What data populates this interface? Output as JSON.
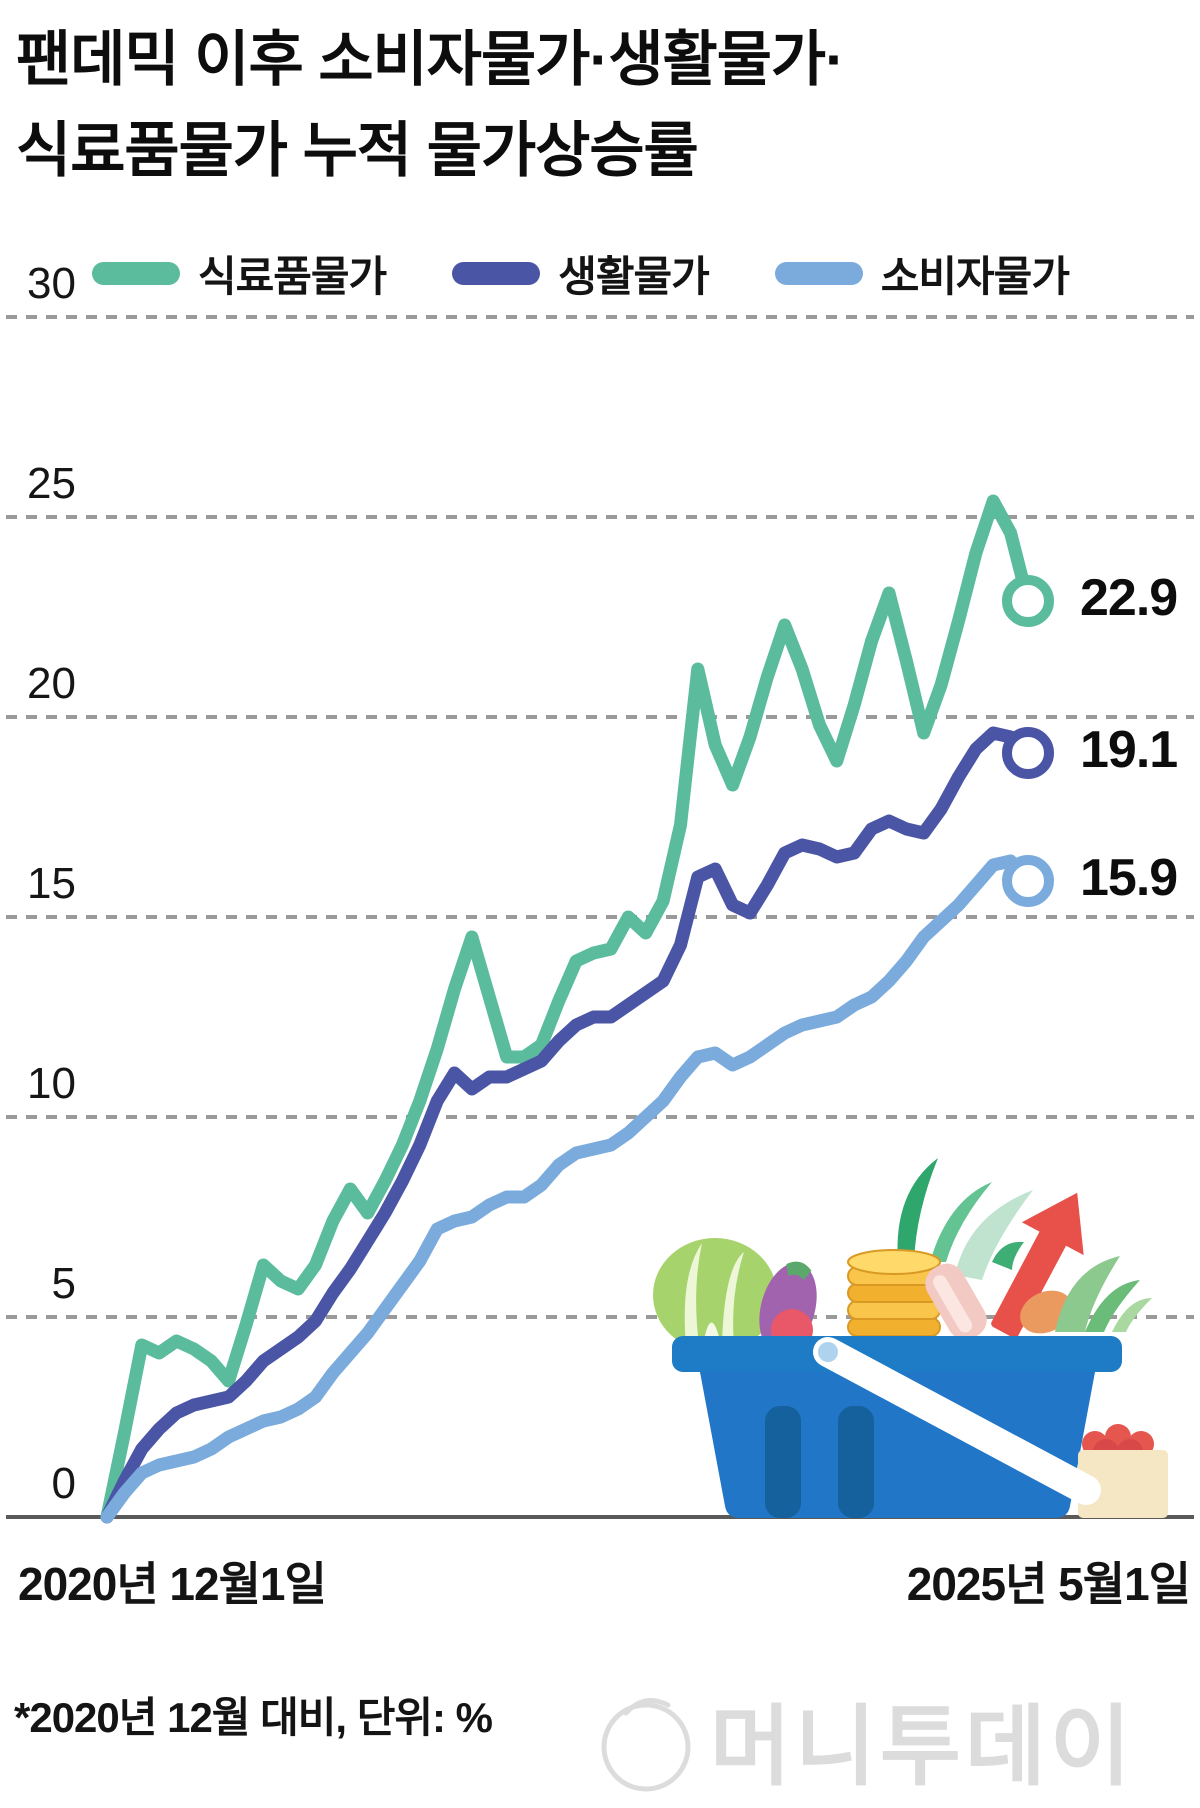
{
  "title": {
    "line1": "팬데믹 이후 소비자물가·생활물가·",
    "line2": "식료품물가 누적 물가상승률"
  },
  "legend": {
    "items": [
      {
        "label": "식료품물가",
        "color": "#5abc9c"
      },
      {
        "label": "생활물가",
        "color": "#4a55a5"
      },
      {
        "label": "소비자물가",
        "color": "#7aabdc"
      }
    ]
  },
  "chart_data": {
    "type": "line",
    "title": "팬데믹 이후 소비자물가·생활물가·식료품물가 누적 물가상승률",
    "unit": "%",
    "note": "2020년 12월 대비 누적 상승률",
    "x_start_label": "2020년 12월1일",
    "x_end_label": "2025년 5월1일",
    "x_range_months": 53,
    "ylim": [
      0,
      30
    ],
    "yticks": [
      30,
      25,
      20,
      15,
      10,
      5,
      0
    ],
    "grid": "horizontal dotted, solid baseline at 0",
    "legend_position": "top",
    "series": [
      {
        "name": "식료품물가",
        "color": "#5abc9c",
        "end_label": "22.9",
        "end_value": 22.9,
        "values": [
          0,
          2.1,
          4.3,
          4.1,
          4.4,
          4.2,
          3.9,
          3.4,
          4.8,
          6.3,
          5.9,
          5.7,
          6.3,
          7.4,
          8.2,
          7.6,
          8.4,
          9.3,
          10.4,
          11.7,
          13.2,
          14.5,
          13.0,
          11.5,
          11.5,
          11.8,
          12.9,
          13.9,
          14.1,
          14.2,
          15.0,
          14.6,
          15.4,
          17.3,
          21.2,
          19.3,
          18.3,
          19.5,
          21.0,
          22.3,
          21.2,
          19.8,
          18.9,
          20.3,
          21.9,
          23.1,
          21.4,
          19.6,
          20.8,
          22.4,
          24.1,
          25.4,
          24.6,
          22.9
        ]
      },
      {
        "name": "생활물가",
        "color": "#4a55a5",
        "end_label": "19.1",
        "end_value": 19.1,
        "values": [
          0,
          0.9,
          1.7,
          2.2,
          2.6,
          2.8,
          2.9,
          3.0,
          3.4,
          3.9,
          4.2,
          4.5,
          4.9,
          5.6,
          6.2,
          6.9,
          7.6,
          8.4,
          9.3,
          10.4,
          11.1,
          10.7,
          11.0,
          11.0,
          11.2,
          11.4,
          11.9,
          12.3,
          12.5,
          12.5,
          12.8,
          13.1,
          13.4,
          14.3,
          16.0,
          16.2,
          15.3,
          15.1,
          15.8,
          16.6,
          16.8,
          16.7,
          16.5,
          16.6,
          17.2,
          17.4,
          17.2,
          17.1,
          17.7,
          18.5,
          19.2,
          19.6,
          19.5,
          19.1
        ]
      },
      {
        "name": "소비자물가",
        "color": "#7aabdc",
        "end_label": "15.9",
        "end_value": 15.9,
        "values": [
          0,
          0.6,
          1.1,
          1.3,
          1.4,
          1.5,
          1.7,
          2.0,
          2.2,
          2.4,
          2.5,
          2.7,
          3.0,
          3.6,
          4.1,
          4.6,
          5.2,
          5.8,
          6.4,
          7.2,
          7.4,
          7.5,
          7.8,
          8.0,
          8.0,
          8.3,
          8.8,
          9.1,
          9.2,
          9.3,
          9.6,
          10.0,
          10.4,
          11.0,
          11.5,
          11.6,
          11.3,
          11.5,
          11.8,
          12.1,
          12.3,
          12.4,
          12.5,
          12.8,
          13.0,
          13.4,
          13.9,
          14.5,
          14.9,
          15.3,
          15.8,
          16.3,
          16.4,
          15.9
        ]
      }
    ]
  },
  "x_axis": {
    "start_label": "2020년 12월1일",
    "end_label": "2025년 5월1일"
  },
  "footnote": "*2020년 12월 대비, 단위: %",
  "watermark": "머니투데이",
  "colors": {
    "food_line": "#5abc9c",
    "living_line": "#4a55a5",
    "consumer_line": "#7aabdc",
    "gridline": "#9a9a9a",
    "axis_line": "#5a5a5a",
    "basket_blue": "#1d7cc5",
    "watermark_gray": "#dcdcdc"
  }
}
